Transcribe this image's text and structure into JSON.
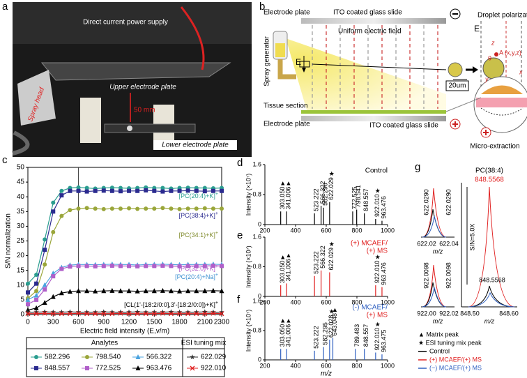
{
  "figure": {
    "a": {
      "label": "a",
      "power": "Direct current power supply",
      "spray": "Spray head",
      "upper": "Upper electrode plate",
      "distance": "50 mm",
      "lower": "Lower electrode plate"
    },
    "b": {
      "label": "b",
      "top_plate": "Electrode plate",
      "top_slide": "ITO coated glass slide",
      "field": "Uniform electric field",
      "generator": "Spray generator",
      "e_field": "E",
      "tissue": "Tissue section",
      "bottom_plate": "Electrode plate",
      "bottom_slide": "ITO coated glass slide",
      "scale": "20um",
      "polarization": "Droplet polarization",
      "e_inset": "E",
      "axis_x": "x",
      "axis_y": "y",
      "axis_z": "z",
      "point": "A (x,y,z)",
      "theta": "θ",
      "extraction": "Micro-extraction"
    },
    "g": {
      "label": "g",
      "top_peak": "622.0290",
      "top_peak2": "622.0290",
      "top_tick_left": "622.02",
      "top_tick_right": "622.04",
      "top_xlabel": "m/z",
      "bottom_peak": "922.0098",
      "bottom_peak2": "922.0098",
      "bottom_tick_left": "922.00",
      "bottom_tick_right": "922.02",
      "bottom_xlabel": "m/z",
      "compound": "PC(38:4)",
      "main_peak": "848.5568",
      "ratio": "S/N=5.0X",
      "main_peak2": "848.5568",
      "main_tick_left": "848.50",
      "main_tick_right": "848.60",
      "main_xlabel": "m/z",
      "legend": [
        "▲ Matrix peak",
        "★ ESI tuning mix peak",
        "Control",
        "(+) MCAEF/(+) MS",
        "(−) MCAEF/(+) MS"
      ],
      "legend_colors": [
        null,
        null,
        "#000000",
        "#e02020",
        "#3060c0"
      ]
    }
  },
  "chart_data": [
    {
      "type": "line",
      "panel": "c",
      "xlabel": "Electric field intensity (E,v/m)",
      "ylabel": "S/N normalization",
      "xlim": [
        0,
        2300
      ],
      "xticks": [
        0,
        300,
        600,
        900,
        1200,
        1500,
        1800,
        2100,
        2300
      ],
      "ylim": [
        0,
        50
      ],
      "yticks": [
        0,
        5,
        10,
        15,
        20,
        25,
        30,
        35,
        40,
        45,
        50
      ],
      "vline": 600,
      "x": [
        0,
        100,
        200,
        300,
        400,
        500,
        600,
        700,
        800,
        900,
        1000,
        1100,
        1200,
        1300,
        1400,
        1500,
        1600,
        1700,
        1800,
        1900,
        2000,
        2100,
        2200,
        2300
      ],
      "legend_groups": [
        "Analytes",
        "ESI tuning mix"
      ],
      "series": [
        {
          "name": "582.296",
          "group": "Analytes",
          "color": "#2a9d8f",
          "marker": "circle",
          "values": [
            10.5,
            13.5,
            25.5,
            38,
            42,
            43,
            43.2,
            43,
            42.8,
            43,
            43.1,
            43,
            42.9,
            43,
            43.2,
            43,
            43,
            42.8,
            43,
            43.1,
            43,
            43,
            42.9,
            43
          ]
        },
        {
          "name": "798.540",
          "group": "Analytes",
          "color": "#9aa63a",
          "marker": "circle",
          "values": [
            5.5,
            8,
            17,
            28,
            33.5,
            35.5,
            36,
            36.2,
            36,
            35.8,
            36,
            36,
            36.1,
            35.9,
            36,
            36,
            36.2,
            36,
            35.8,
            36,
            36,
            36.1,
            36,
            36
          ]
        },
        {
          "name": "566.322",
          "group": "Analytes",
          "color": "#4aa3df",
          "marker": "triangle",
          "values": [
            5,
            6.5,
            10,
            14,
            16,
            16.8,
            17,
            17,
            16.9,
            17,
            17.1,
            17,
            17,
            16.8,
            17,
            17,
            17.1,
            17,
            16.9,
            17,
            17,
            17,
            17.1,
            17
          ]
        },
        {
          "name": "848.557",
          "group": "Analytes",
          "color": "#2b2b8f",
          "marker": "square",
          "values": [
            7.5,
            10.5,
            22,
            35,
            40.5,
            42,
            42,
            41.8,
            42,
            42.1,
            42,
            41.9,
            42,
            42,
            42.2,
            42,
            41.8,
            42,
            42,
            42.1,
            42,
            41.9,
            42,
            42
          ]
        },
        {
          "name": "772.525",
          "group": "Analytes",
          "color": "#b05fc9",
          "marker": "square",
          "values": [
            3.5,
            5,
            8.5,
            13,
            15.5,
            16.3,
            16.5,
            16.5,
            16.4,
            16.5,
            16.6,
            16.5,
            16.5,
            16.4,
            16.5,
            16.5,
            16.6,
            16.5,
            16.4,
            16.5,
            16.5,
            16.5,
            16.6,
            16.5
          ]
        },
        {
          "name": "963.476",
          "group": "Analytes",
          "color": "#000000",
          "marker": "triangle",
          "values": [
            1.5,
            2.2,
            4,
            6,
            7.3,
            7.8,
            8,
            8,
            7.9,
            8,
            8.1,
            8,
            8,
            7.9,
            8,
            8,
            8.1,
            8,
            7.9,
            8,
            8,
            8,
            8.1,
            8
          ]
        },
        {
          "name": "622.029",
          "group": "ESI tuning mix",
          "color": "#333333",
          "marker": "star",
          "values": [
            0.8,
            0.8,
            0.9,
            0.8,
            0.8,
            0.9,
            0.8,
            0.8,
            0.8,
            0.9,
            0.8,
            0.8,
            0.8,
            0.9,
            0.8,
            0.8,
            0.8,
            0.9,
            0.8,
            0.8,
            0.8,
            0.9,
            0.8,
            0.8
          ]
        },
        {
          "name": "922.010",
          "group": "ESI tuning mix",
          "color": "#e02020",
          "marker": "cross",
          "values": [
            0.3,
            0.3,
            0.4,
            0.3,
            0.3,
            0.3,
            0.4,
            0.3,
            0.3,
            0.3,
            0.3,
            0.4,
            0.3,
            0.3,
            0.3,
            0.3,
            0.4,
            0.3,
            0.3,
            0.3,
            0.3,
            0.3,
            0.4,
            0.3
          ]
        }
      ],
      "annotations": [
        {
          "text": "[PC(20:4)+K]",
          "sup": "+",
          "color": "#2a9d8f"
        },
        {
          "text": "[PC(38:4)+K]",
          "sup": "+",
          "color": "#2b2b8f"
        },
        {
          "text": "[PC(34:1)+K]",
          "sup": "+",
          "color": "#7f8a2a"
        },
        {
          "text": "[PC(32:0)+K]",
          "sup": "+",
          "color": "#b05fc9"
        },
        {
          "text": "[PC(20:4)+Na]",
          "sup": "+",
          "color": "#3a8fd0"
        },
        {
          "text": "[CL(1'-[18:2/0:0],3'-[18:2/0:0])+K]",
          "sup": "+",
          "color": "#000000"
        }
      ]
    },
    {
      "type": "spectrum",
      "panel": "d",
      "title": [
        "Control"
      ],
      "title_colors": [
        "#000000"
      ],
      "ylabel": "Intensity (×10⁷)",
      "color": "#000000",
      "xlim": [
        200,
        1000
      ],
      "xticks": [
        200,
        400,
        600,
        800,
        1000
      ],
      "ylim": [
        0,
        1.6
      ],
      "yticks": [
        0,
        0.8,
        1.6
      ],
      "x": [
        303.05,
        341.006,
        523.222,
        566.322,
        582.296,
        622.029,
        772.525,
        798.541,
        848.557,
        922.01,
        963.476
      ],
      "x_labels": [
        "303.050",
        "341.006",
        "523.222",
        "566.322",
        "582.296",
        "622.029",
        "772.525",
        "798.541",
        "848.557",
        "922.010",
        "963.476"
      ],
      "markers": [
        "▲",
        "▲",
        null,
        null,
        null,
        "★",
        null,
        null,
        null,
        "★",
        null
      ],
      "values": [
        0.35,
        0.35,
        0.3,
        0.5,
        0.45,
        0.6,
        0.35,
        0.4,
        0.3,
        0.15,
        0.1
      ]
    },
    {
      "type": "spectrum",
      "panel": "e",
      "title": [
        "(+) MCAEF/",
        "(+) MS"
      ],
      "title_colors": [
        "#e02020",
        "#e02020"
      ],
      "ylabel": "Intensity (×10⁷)",
      "color": "#e02020",
      "xlim": [
        200,
        1000
      ],
      "xticks": [
        200,
        400,
        600,
        800,
        1000
      ],
      "ylim": [
        0,
        1.6
      ],
      "yticks": [
        0,
        0.8,
        1.6
      ],
      "x": [
        303.05,
        341.006,
        523.222,
        566.322,
        622.029,
        922.01,
        963.476
      ],
      "x_labels": [
        "303.050",
        "341.006",
        "523.222",
        "566.322",
        "622.029",
        "922.010",
        "963.476"
      ],
      "markers": [
        "▲",
        "▲",
        null,
        null,
        "★",
        "★",
        null
      ],
      "values": [
        0.3,
        0.35,
        0.55,
        0.7,
        0.65,
        0.3,
        0.25
      ]
    },
    {
      "type": "spectrum",
      "panel": "f",
      "title": [
        "(-) MCAEF/",
        "(+) MS"
      ],
      "title_colors": [
        "#3060c0",
        "#e02020"
      ],
      "ylabel": "Intensity (×10⁷)",
      "xlabel": "m/z",
      "color": "#3060c0",
      "xlim": [
        200,
        1000
      ],
      "xticks": [
        200,
        400,
        600,
        800,
        1000
      ],
      "ylim": [
        0,
        1.6
      ],
      "yticks": [
        0,
        0.8,
        1.6
      ],
      "x": [
        303.05,
        341.006,
        523.222,
        582.295,
        622.028,
        643.048,
        789.483,
        848.557,
        922.01,
        963.475
      ],
      "x_labels": [
        "303.050",
        "341.006",
        "523.222",
        "582.295",
        "622.028",
        "643.048",
        "789.483",
        "848.557",
        "922.010",
        "963.475"
      ],
      "markers": [
        "▲",
        "▲",
        null,
        null,
        "★",
        "▲",
        null,
        null,
        "★",
        null
      ],
      "values": [
        0.3,
        0.3,
        0.25,
        0.35,
        0.55,
        0.6,
        0.3,
        0.3,
        0.2,
        0.15
      ]
    }
  ]
}
